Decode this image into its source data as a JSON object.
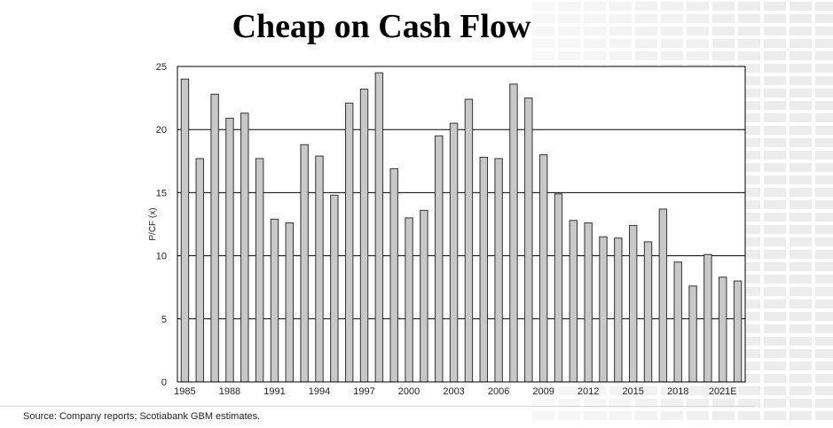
{
  "title": "Cheap on Cash Flow",
  "source": "Source: Company reports; Scotiabank GBM estimates.",
  "colors": {
    "bar_fill": "#c8c8c8",
    "bar_stroke": "#333333",
    "grid": "#000000",
    "plot_bg": "#ffffff"
  },
  "chart_data": {
    "type": "bar",
    "ylabel": "P/CF (x)",
    "xlabel": "",
    "ylim": [
      0,
      25
    ],
    "yticks": [
      0,
      5,
      10,
      15,
      20,
      25
    ],
    "grid": true,
    "x_tick_labels": [
      "1985",
      "1988",
      "1991",
      "1994",
      "1997",
      "2000",
      "2003",
      "2006",
      "2009",
      "2012",
      "2015",
      "2018",
      "2021E"
    ],
    "categories": [
      "1985",
      "1986",
      "1987",
      "1988",
      "1989",
      "1990",
      "1991",
      "1992",
      "1993",
      "1994",
      "1995",
      "1996",
      "1997",
      "1998",
      "1999",
      "2000",
      "2001",
      "2002",
      "2003",
      "2004",
      "2005",
      "2006",
      "2007",
      "2008",
      "2009",
      "2010",
      "2011",
      "2012",
      "2013",
      "2014",
      "2015",
      "2016",
      "2017",
      "2018",
      "2019",
      "2020",
      "2021E",
      "2022E"
    ],
    "values": [
      24.0,
      17.7,
      22.8,
      20.9,
      21.3,
      17.7,
      12.9,
      12.6,
      18.8,
      17.9,
      14.8,
      22.1,
      23.2,
      24.5,
      16.9,
      13.0,
      13.6,
      19.5,
      20.5,
      22.4,
      17.8,
      17.7,
      23.6,
      22.5,
      18.0,
      14.9,
      12.8,
      12.6,
      11.5,
      11.4,
      12.4,
      11.1,
      13.7,
      9.5,
      7.6,
      10.1,
      8.3,
      8.0
    ]
  }
}
